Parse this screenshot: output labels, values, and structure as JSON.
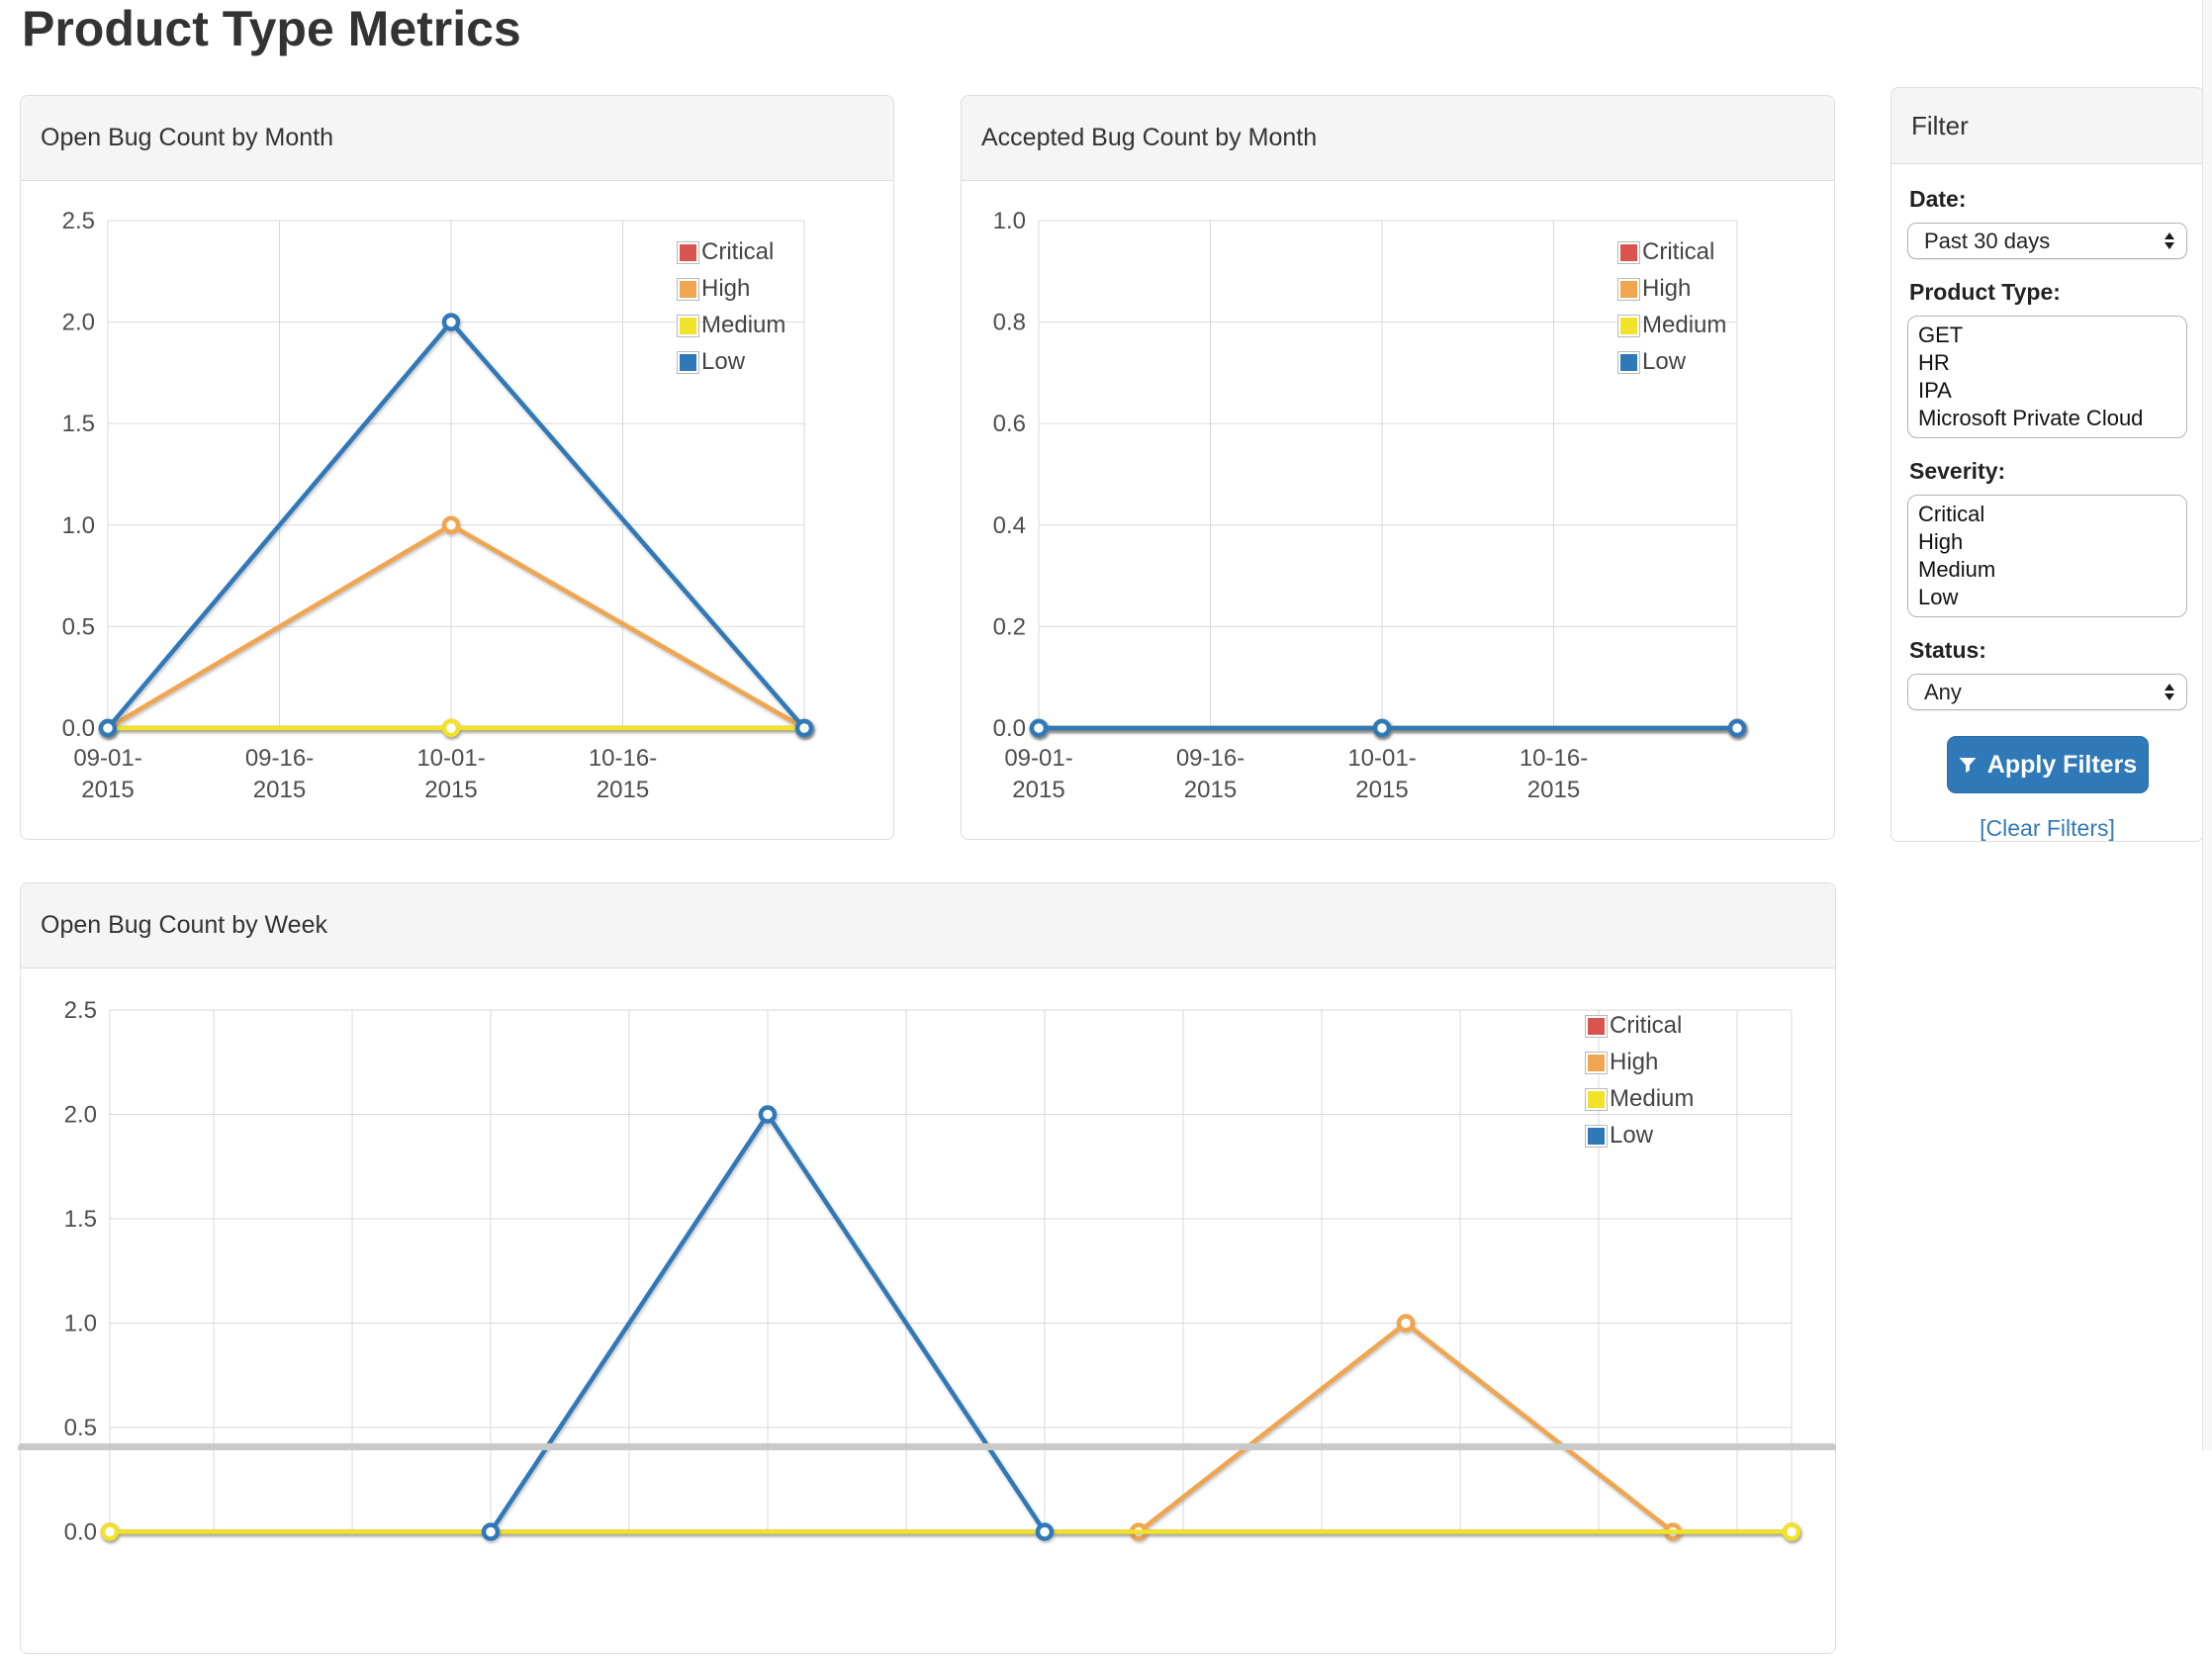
{
  "page": {
    "title": "Product Type Metrics"
  },
  "colors": {
    "critical": "#d9534f",
    "high": "#f0a54e",
    "medium": "#f1e32a",
    "low": "#2f79b9",
    "accent": "#337ab7"
  },
  "chart_data": [
    {
      "type": "line",
      "title": "Open Bug Count by Month",
      "xlabel": "",
      "ylabel": "",
      "ylim": [
        0,
        2.5
      ],
      "y_ticks": [
        0.0,
        0.5,
        1.0,
        1.5,
        2.0,
        2.5
      ],
      "x_tick_labels": [
        "09-01-2015",
        "09-16-2015",
        "10-01-2015",
        "10-16-2015"
      ],
      "grid": true,
      "legend_position": "top-right",
      "series": [
        {
          "name": "Critical",
          "color": "critical",
          "x": [
            "09-01-2015",
            "10-01-2015",
            "10-31-2015"
          ],
          "values": [
            0,
            0,
            0
          ]
        },
        {
          "name": "High",
          "color": "high",
          "x": [
            "09-01-2015",
            "10-01-2015",
            "10-31-2015"
          ],
          "values": [
            0,
            1,
            0
          ]
        },
        {
          "name": "Medium",
          "color": "medium",
          "x": [
            "09-01-2015",
            "10-01-2015",
            "10-31-2015"
          ],
          "values": [
            0,
            0,
            0
          ]
        },
        {
          "name": "Low",
          "color": "low",
          "x": [
            "09-01-2015",
            "10-01-2015",
            "10-31-2015"
          ],
          "values": [
            0,
            2,
            0
          ]
        }
      ]
    },
    {
      "type": "line",
      "title": "Accepted Bug Count by Month",
      "xlabel": "",
      "ylabel": "",
      "ylim": [
        0,
        1.0
      ],
      "y_ticks": [
        0.0,
        0.2,
        0.4,
        0.6,
        0.8,
        1.0
      ],
      "x_tick_labels": [
        "09-01-2015",
        "09-16-2015",
        "10-01-2015",
        "10-16-2015"
      ],
      "grid": true,
      "legend_position": "top-right",
      "series": [
        {
          "name": "Critical",
          "color": "critical",
          "x": [
            "09-01-2015",
            "10-01-2015",
            "10-31-2015"
          ],
          "values": [
            0,
            0,
            0
          ]
        },
        {
          "name": "High",
          "color": "high",
          "x": [
            "09-01-2015",
            "10-01-2015",
            "10-31-2015"
          ],
          "values": [
            0,
            0,
            0
          ]
        },
        {
          "name": "Medium",
          "color": "medium",
          "x": [
            "09-01-2015",
            "10-01-2015",
            "10-31-2015"
          ],
          "values": [
            0,
            0,
            0
          ]
        },
        {
          "name": "Low",
          "color": "low",
          "x": [
            "09-01-2015",
            "10-01-2015",
            "10-31-2015"
          ],
          "values": [
            0,
            0,
            0
          ]
        }
      ]
    },
    {
      "type": "line",
      "title": "Open Bug Count by Week",
      "xlabel": "",
      "ylabel": "",
      "ylim": [
        0,
        2.5
      ],
      "y_ticks": [
        0.0,
        0.5,
        1.0,
        1.5,
        2.0,
        2.5
      ],
      "x_tick_labels": [],
      "grid": true,
      "legend_position": "top-right",
      "series": [
        {
          "name": "Critical",
          "color": "critical",
          "x": [
            "09-01-2015",
            "11-30-2015"
          ],
          "values": [
            0,
            0
          ]
        },
        {
          "name": "High",
          "color": "high",
          "x": [
            "10-26-2015",
            "11-04-2015",
            "11-13-2015"
          ],
          "values": [
            0,
            1,
            0
          ]
        },
        {
          "name": "Medium",
          "color": "medium",
          "x": [
            "09-01-2015",
            "11-30-2015"
          ],
          "values": [
            0,
            0
          ]
        },
        {
          "name": "Low",
          "color": "low",
          "x": [
            "09-20-2015",
            "10-04-2015",
            "10-18-2015"
          ],
          "values": [
            0,
            2,
            0
          ]
        }
      ]
    }
  ],
  "filter": {
    "title": "Filter",
    "date_label": "Date:",
    "date_value": "Past 30 days",
    "product_type_label": "Product Type:",
    "product_type_options": [
      "GET",
      "HR",
      "IPA",
      "Microsoft Private Cloud"
    ],
    "severity_label": "Severity:",
    "severity_options": [
      "Critical",
      "High",
      "Medium",
      "Low"
    ],
    "status_label": "Status:",
    "status_value": "Any",
    "apply_label": "Apply Filters",
    "clear_label": "[Clear Filters]"
  }
}
